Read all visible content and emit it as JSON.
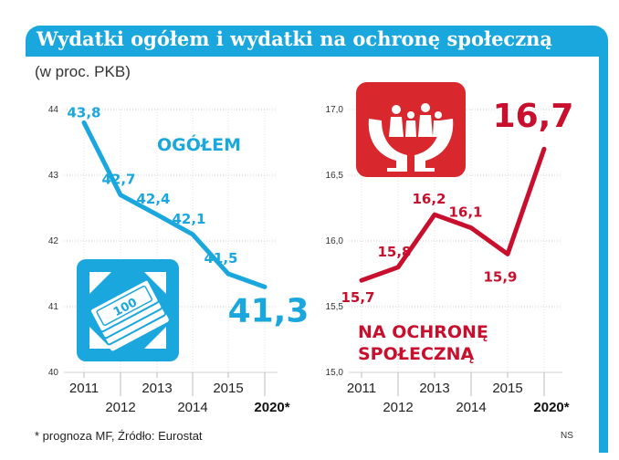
{
  "title": "Wydatki ogółem i wydatki na ochronę społeczną",
  "subtitle": "(w proc. PKB)",
  "footnote": "* prognoza MF, Źródło: Eurostat",
  "author": "NS",
  "colors": {
    "blue": "#1aa7de",
    "red": "#c8102e"
  },
  "icons": {
    "left": "money-banknotes-icon",
    "right": "family-hands-icon"
  },
  "chart_data": [
    {
      "type": "line",
      "x": [
        "2011",
        "2012",
        "2013",
        "2014",
        "2015",
        "2020*"
      ],
      "ylim": [
        40,
        44
      ],
      "yticks": [
        "40",
        "41",
        "42",
        "43",
        "44"
      ],
      "series": [
        {
          "name": "OGÓŁEM",
          "values": [
            43.8,
            42.7,
            42.4,
            42.1,
            41.5,
            41.3
          ],
          "labels": [
            "43,8",
            "42,7",
            "42,4",
            "42,1",
            "41,5",
            "41,3"
          ]
        }
      ],
      "grid": true
    },
    {
      "type": "line",
      "x": [
        "2011",
        "2012",
        "2013",
        "2014",
        "2015",
        "2020*"
      ],
      "ylim": [
        15.0,
        17.0
      ],
      "yticks": [
        "15,0",
        "15,5",
        "16,0",
        "16,5",
        "17,0"
      ],
      "series": [
        {
          "name": "NA OCHRONĘ SPOŁECZNĄ",
          "name_lines": [
            "NA OCHRONĘ",
            "SPOŁECZNĄ"
          ],
          "values": [
            15.7,
            15.8,
            16.2,
            16.1,
            15.9,
            16.7
          ],
          "labels": [
            "15,7",
            "15,8",
            "16,2",
            "16,1",
            "15,9",
            "16,7"
          ]
        }
      ],
      "grid": true
    }
  ]
}
